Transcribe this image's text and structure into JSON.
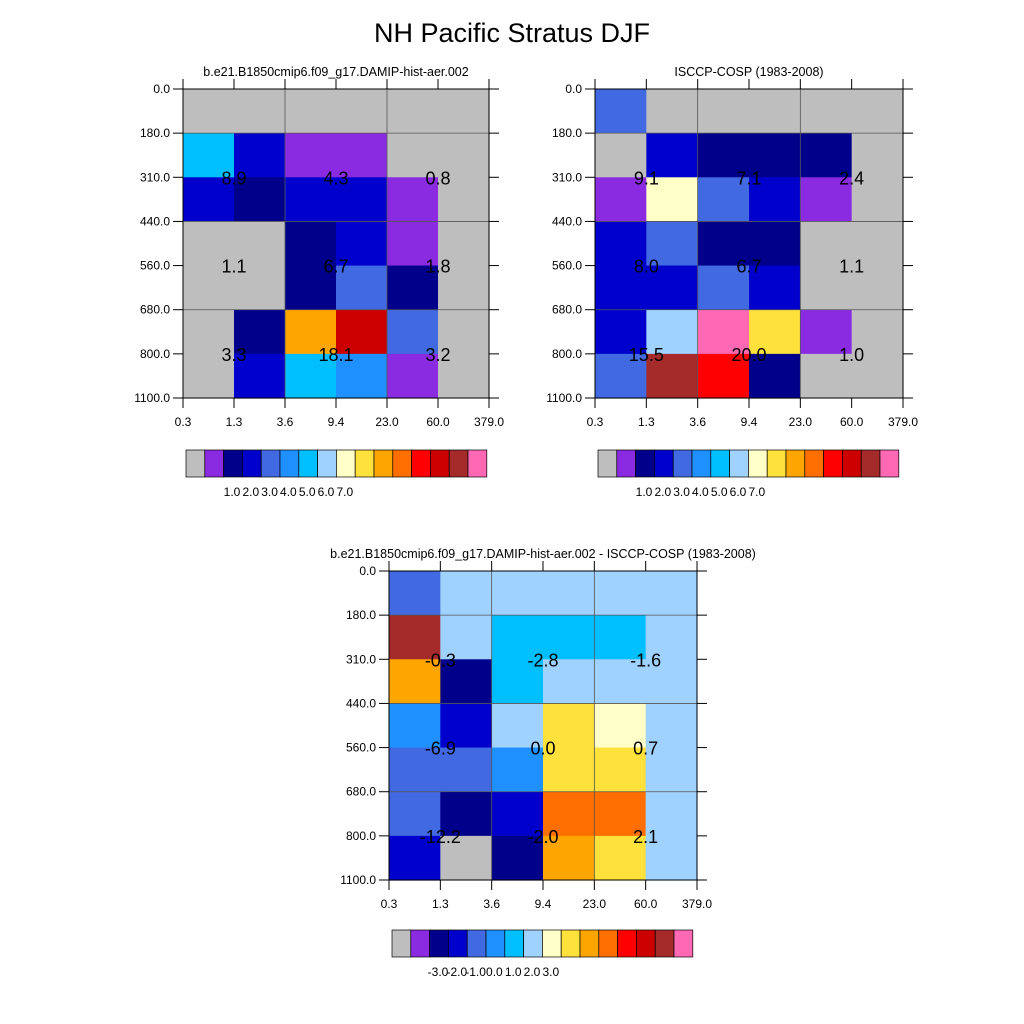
{
  "title": "NH Pacific Stratus DJF",
  "chart_data": [
    {
      "type": "heatmap",
      "title": "b.e21.B1850cmip6.f09_g17.DAMIP-hist-aer.002",
      "x_tick_labels": [
        "0.3",
        "1.3",
        "3.6",
        "9.4",
        "23.0",
        "60.0",
        "379.0"
      ],
      "y_tick_labels": [
        "0.0",
        "180.0",
        "310.0",
        "440.0",
        "560.0",
        "680.0",
        "800.0",
        "1100.0"
      ],
      "cells": [
        [
          "#bebebe",
          "#bebebe",
          "#bebebe",
          "#bebebe",
          "#bebebe",
          "#bebebe"
        ],
        [
          "#00bfff",
          "#0000cd",
          "#8a2be2",
          "#8a2be2",
          "#bebebe",
          "#bebebe"
        ],
        [
          "#0000cd",
          "#00008b",
          "#0000cd",
          "#0000cd",
          "#8a2be2",
          "#bebebe"
        ],
        [
          "#bebebe",
          "#bebebe",
          "#00008b",
          "#0000cd",
          "#8a2be2",
          "#bebebe"
        ],
        [
          "#bebebe",
          "#bebebe",
          "#00008b",
          "#4169e1",
          "#00008b",
          "#bebebe"
        ],
        [
          "#bebebe",
          "#00008b",
          "#ffa500",
          "#cd0000",
          "#4169e1",
          "#bebebe"
        ],
        [
          "#bebebe",
          "#0000cd",
          "#00bfff",
          "#1e90ff",
          "#8a2be2",
          "#bebebe"
        ]
      ],
      "block_values": [
        [
          "8.9",
          "4.3",
          "0.8"
        ],
        [
          "1.1",
          "6.7",
          "1.8"
        ],
        [
          "3.3",
          "18.1",
          "3.2"
        ]
      ],
      "colorbar": {
        "colors": [
          "#bebebe",
          "#8a2be2",
          "#00008b",
          "#0000cd",
          "#4169e1",
          "#1e90ff",
          "#00bfff",
          "#a0d2ff",
          "#ffffc8",
          "#ffe13c",
          "#ffa500",
          "#ff6e00",
          "#ff0000",
          "#cd0000",
          "#a52a2a",
          "#ff69b4"
        ],
        "labels": [
          "1.0",
          "2.0",
          "3.0",
          "4.0",
          "5.0",
          "6.0",
          "7.0"
        ]
      }
    },
    {
      "type": "heatmap",
      "title": "ISCCP-COSP (1983-2008)",
      "x_tick_labels": [
        "0.3",
        "1.3",
        "3.6",
        "9.4",
        "23.0",
        "60.0",
        "379.0"
      ],
      "y_tick_labels": [
        "0.0",
        "180.0",
        "310.0",
        "440.0",
        "560.0",
        "680.0",
        "800.0",
        "1100.0"
      ],
      "cells": [
        [
          "#4169e1",
          "#bebebe",
          "#bebebe",
          "#bebebe",
          "#bebebe",
          "#bebebe"
        ],
        [
          "#bebebe",
          "#0000cd",
          "#00008b",
          "#00008b",
          "#00008b",
          "#bebebe"
        ],
        [
          "#8a2be2",
          "#ffffc8",
          "#4169e1",
          "#0000cd",
          "#8a2be2",
          "#bebebe"
        ],
        [
          "#0000cd",
          "#4169e1",
          "#00008b",
          "#00008b",
          "#bebebe",
          "#bebebe"
        ],
        [
          "#0000cd",
          "#0000cd",
          "#4169e1",
          "#0000cd",
          "#bebebe",
          "#bebebe"
        ],
        [
          "#0000cd",
          "#a0d2ff",
          "#ff69b4",
          "#ffe13c",
          "#8a2be2",
          "#bebebe"
        ],
        [
          "#4169e1",
          "#a52a2a",
          "#ff0000",
          "#00008b",
          "#bebebe",
          "#bebebe"
        ]
      ],
      "block_values": [
        [
          "9.1",
          "7.1",
          "2.4"
        ],
        [
          "8.0",
          "6.7",
          "1.1"
        ],
        [
          "15.5",
          "20.0",
          "1.0"
        ]
      ],
      "colorbar": {
        "colors": [
          "#bebebe",
          "#8a2be2",
          "#00008b",
          "#0000cd",
          "#4169e1",
          "#1e90ff",
          "#00bfff",
          "#a0d2ff",
          "#ffffc8",
          "#ffe13c",
          "#ffa500",
          "#ff6e00",
          "#ff0000",
          "#cd0000",
          "#a52a2a",
          "#ff69b4"
        ],
        "labels": [
          "1.0",
          "2.0",
          "3.0",
          "4.0",
          "5.0",
          "6.0",
          "7.0"
        ]
      }
    },
    {
      "type": "heatmap",
      "title": "b.e21.B1850cmip6.f09_g17.DAMIP-hist-aer.002 - ISCCP-COSP (1983-2008)",
      "x_tick_labels": [
        "0.3",
        "1.3",
        "3.6",
        "9.4",
        "23.0",
        "60.0",
        "379.0"
      ],
      "y_tick_labels": [
        "0.0",
        "180.0",
        "310.0",
        "440.0",
        "560.0",
        "680.0",
        "800.0",
        "1100.0"
      ],
      "cells": [
        [
          "#4169e1",
          "#a0d2ff",
          "#a0d2ff",
          "#a0d2ff",
          "#a0d2ff",
          "#a0d2ff"
        ],
        [
          "#a52a2a",
          "#a0d2ff",
          "#00bfff",
          "#00bfff",
          "#00bfff",
          "#a0d2ff"
        ],
        [
          "#ffa500",
          "#00008b",
          "#00bfff",
          "#a0d2ff",
          "#a0d2ff",
          "#a0d2ff"
        ],
        [
          "#1e90ff",
          "#0000cd",
          "#a0d2ff",
          "#ffe13c",
          "#ffffc8",
          "#a0d2ff"
        ],
        [
          "#4169e1",
          "#4169e1",
          "#1e90ff",
          "#ffe13c",
          "#ffe13c",
          "#a0d2ff"
        ],
        [
          "#4169e1",
          "#00008b",
          "#0000cd",
          "#ff6e00",
          "#ff6e00",
          "#a0d2ff"
        ],
        [
          "#0000cd",
          "#bebebe",
          "#00008b",
          "#ffa500",
          "#ffe13c",
          "#a0d2ff"
        ]
      ],
      "block_values": [
        [
          "-0.3",
          "-2.8",
          "-1.6"
        ],
        [
          "-6.9",
          "0.0",
          "0.7"
        ],
        [
          "-12.2",
          "-2.0",
          "2.1"
        ]
      ],
      "colorbar": {
        "colors": [
          "#bebebe",
          "#8a2be2",
          "#00008b",
          "#0000cd",
          "#4169e1",
          "#1e90ff",
          "#00bfff",
          "#a0d2ff",
          "#ffffc8",
          "#ffe13c",
          "#ffa500",
          "#ff6e00",
          "#ff0000",
          "#cd0000",
          "#a52a2a",
          "#ff69b4"
        ],
        "labels": [
          "-3.0",
          "-2.0",
          "-1.0",
          "0.0",
          "1.0",
          "2.0",
          "3.0"
        ]
      }
    }
  ]
}
